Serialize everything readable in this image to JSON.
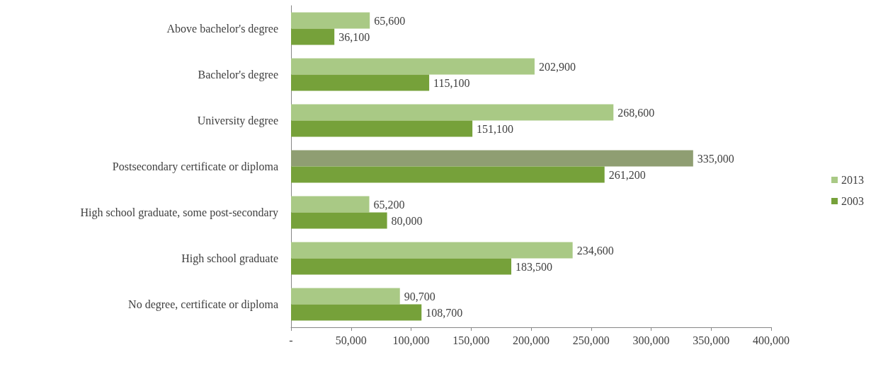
{
  "chart_data": {
    "type": "bar",
    "orientation": "horizontal",
    "categories": [
      "Above bachelor's degree",
      "Bachelor's degree",
      "University degree",
      "Postsecondary certificate or diploma",
      "High school graduate, some post-secondary",
      "High school graduate",
      "No degree, certificate or diploma"
    ],
    "series": [
      {
        "name": "2013",
        "color": "#a9c985",
        "colors": [
          "#a9c985",
          "#a9c985",
          "#a9c985",
          "#8f9e72",
          "#a9c985",
          "#a9c985",
          "#a9c985"
        ],
        "values": [
          65600,
          202900,
          268600,
          335000,
          65200,
          234600,
          90700
        ],
        "value_labels": [
          "65,600",
          "202,900",
          "268,600",
          "335,000",
          "65,200",
          "234,600",
          "90,700"
        ]
      },
      {
        "name": "2003",
        "color": "#76a13a",
        "values": [
          36100,
          115100,
          151100,
          261200,
          80000,
          183500,
          108700
        ],
        "value_labels": [
          "36,100",
          "115,100",
          "151,100",
          "261,200",
          "80,000",
          "183,500",
          "108,700"
        ]
      }
    ],
    "xlim": [
      0,
      400000
    ],
    "xticks": [
      {
        "value": 0,
        "label": "-"
      },
      {
        "value": 50000,
        "label": "50,000"
      },
      {
        "value": 100000,
        "label": "100,000"
      },
      {
        "value": 150000,
        "label": "150,000"
      },
      {
        "value": 200000,
        "label": "200,000"
      },
      {
        "value": 250000,
        "label": "250,000"
      },
      {
        "value": 300000,
        "label": "300,000"
      },
      {
        "value": 350000,
        "label": "350,000"
      },
      {
        "value": 400000,
        "label": "400,000"
      }
    ],
    "grid": false,
    "legend": "right"
  }
}
